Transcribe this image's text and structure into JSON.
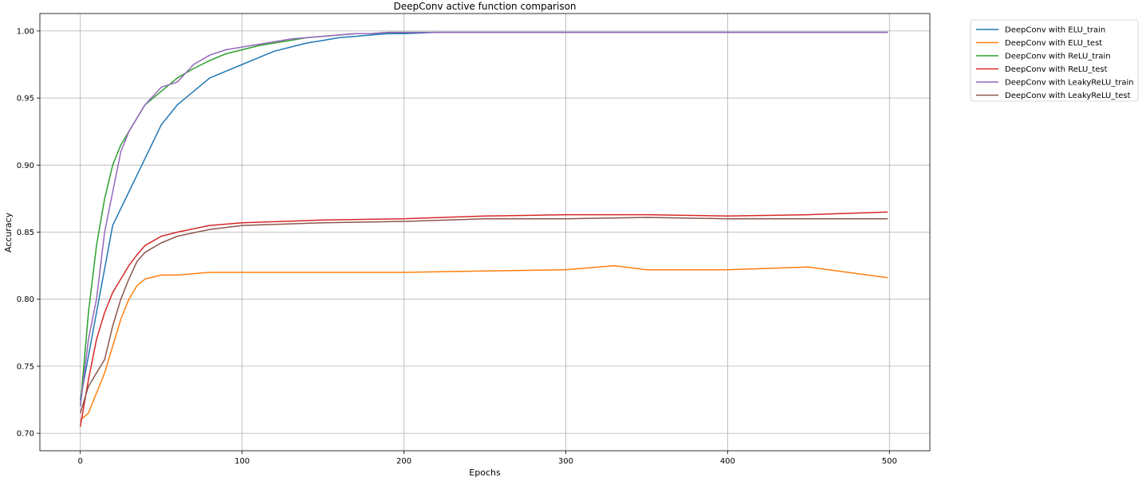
{
  "chart_data": {
    "type": "line",
    "title": "DeepConv active function comparison",
    "xlabel": "Epochs",
    "ylabel": "Accuracy",
    "xlim": [
      -25,
      525
    ],
    "ylim": [
      0.687,
      1.013
    ],
    "xticks": [
      0,
      100,
      200,
      300,
      400,
      500
    ],
    "yticks": [
      0.7,
      0.75,
      0.8,
      0.85,
      0.9,
      0.95,
      1.0
    ],
    "xtick_labels": [
      "0",
      "100",
      "200",
      "300",
      "400",
      "500"
    ],
    "ytick_labels": [
      "0.70",
      "0.75",
      "0.80",
      "0.85",
      "0.90",
      "0.95",
      "1.00"
    ],
    "grid": true,
    "legend_position": "outside-top-right",
    "series": [
      {
        "name": "DeepConv with ELU_train",
        "color": "#1f77b4",
        "x": [
          0,
          10,
          20,
          30,
          40,
          50,
          60,
          70,
          80,
          90,
          100,
          110,
          120,
          130,
          140,
          150,
          160,
          170,
          180,
          190,
          200,
          220,
          250,
          300,
          350,
          400,
          450,
          499
        ],
        "y": [
          0.725,
          0.79,
          0.855,
          0.88,
          0.905,
          0.93,
          0.945,
          0.955,
          0.965,
          0.97,
          0.975,
          0.98,
          0.985,
          0.988,
          0.991,
          0.993,
          0.995,
          0.996,
          0.997,
          0.998,
          0.998,
          0.999,
          0.999,
          0.999,
          0.999,
          0.999,
          0.999,
          0.999
        ]
      },
      {
        "name": "DeepConv with ELU_test",
        "color": "#ff7f0e",
        "x": [
          0,
          5,
          10,
          15,
          20,
          25,
          30,
          35,
          40,
          50,
          60,
          80,
          100,
          150,
          200,
          250,
          300,
          330,
          350,
          400,
          450,
          499
        ],
        "y": [
          0.71,
          0.715,
          0.73,
          0.745,
          0.765,
          0.785,
          0.8,
          0.81,
          0.815,
          0.818,
          0.818,
          0.82,
          0.82,
          0.82,
          0.82,
          0.821,
          0.822,
          0.825,
          0.822,
          0.822,
          0.824,
          0.816
        ]
      },
      {
        "name": "DeepConv with ReLU_train",
        "color": "#2ca02c",
        "x": [
          0,
          5,
          10,
          15,
          20,
          25,
          30,
          35,
          40,
          50,
          60,
          70,
          80,
          90,
          100,
          110,
          120,
          130,
          140,
          150,
          160,
          170,
          180,
          190,
          200,
          220,
          250,
          300,
          350,
          400,
          450,
          499
        ],
        "y": [
          0.72,
          0.79,
          0.84,
          0.875,
          0.9,
          0.915,
          0.925,
          0.935,
          0.945,
          0.955,
          0.965,
          0.972,
          0.978,
          0.983,
          0.986,
          0.989,
          0.991,
          0.993,
          0.995,
          0.996,
          0.997,
          0.998,
          0.998,
          0.999,
          0.999,
          0.999,
          0.999,
          0.999,
          0.999,
          0.999,
          0.999,
          0.999
        ]
      },
      {
        "name": "DeepConv with ReLU_test",
        "color": "#d62728",
        "x": [
          0,
          5,
          10,
          15,
          20,
          25,
          30,
          35,
          40,
          50,
          60,
          80,
          100,
          150,
          200,
          250,
          300,
          350,
          400,
          450,
          499
        ],
        "y": [
          0.705,
          0.74,
          0.77,
          0.79,
          0.805,
          0.815,
          0.825,
          0.833,
          0.84,
          0.847,
          0.85,
          0.855,
          0.857,
          0.859,
          0.86,
          0.862,
          0.863,
          0.863,
          0.862,
          0.863,
          0.865
        ]
      },
      {
        "name": "DeepConv with LeakyReLU_train",
        "color": "#9467bd",
        "x": [
          0,
          5,
          10,
          15,
          20,
          25,
          30,
          35,
          40,
          50,
          60,
          70,
          80,
          90,
          100,
          110,
          120,
          130,
          140,
          150,
          160,
          170,
          180,
          190,
          200,
          220,
          250,
          300,
          350,
          400,
          450,
          499
        ],
        "y": [
          0.72,
          0.77,
          0.8,
          0.85,
          0.88,
          0.91,
          0.925,
          0.935,
          0.945,
          0.958,
          0.962,
          0.975,
          0.982,
          0.986,
          0.988,
          0.99,
          0.992,
          0.994,
          0.995,
          0.996,
          0.997,
          0.998,
          0.998,
          0.999,
          0.999,
          0.999,
          0.999,
          0.999,
          0.999,
          0.999,
          0.999,
          0.999
        ]
      },
      {
        "name": "DeepConv with LeakyReLU_test",
        "color": "#8c564b",
        "x": [
          0,
          5,
          10,
          15,
          20,
          25,
          30,
          35,
          40,
          50,
          60,
          80,
          100,
          150,
          200,
          250,
          300,
          350,
          400,
          450,
          499
        ],
        "y": [
          0.715,
          0.735,
          0.745,
          0.755,
          0.78,
          0.8,
          0.815,
          0.828,
          0.835,
          0.842,
          0.847,
          0.852,
          0.855,
          0.857,
          0.858,
          0.86,
          0.86,
          0.861,
          0.86,
          0.86,
          0.86
        ]
      }
    ]
  }
}
